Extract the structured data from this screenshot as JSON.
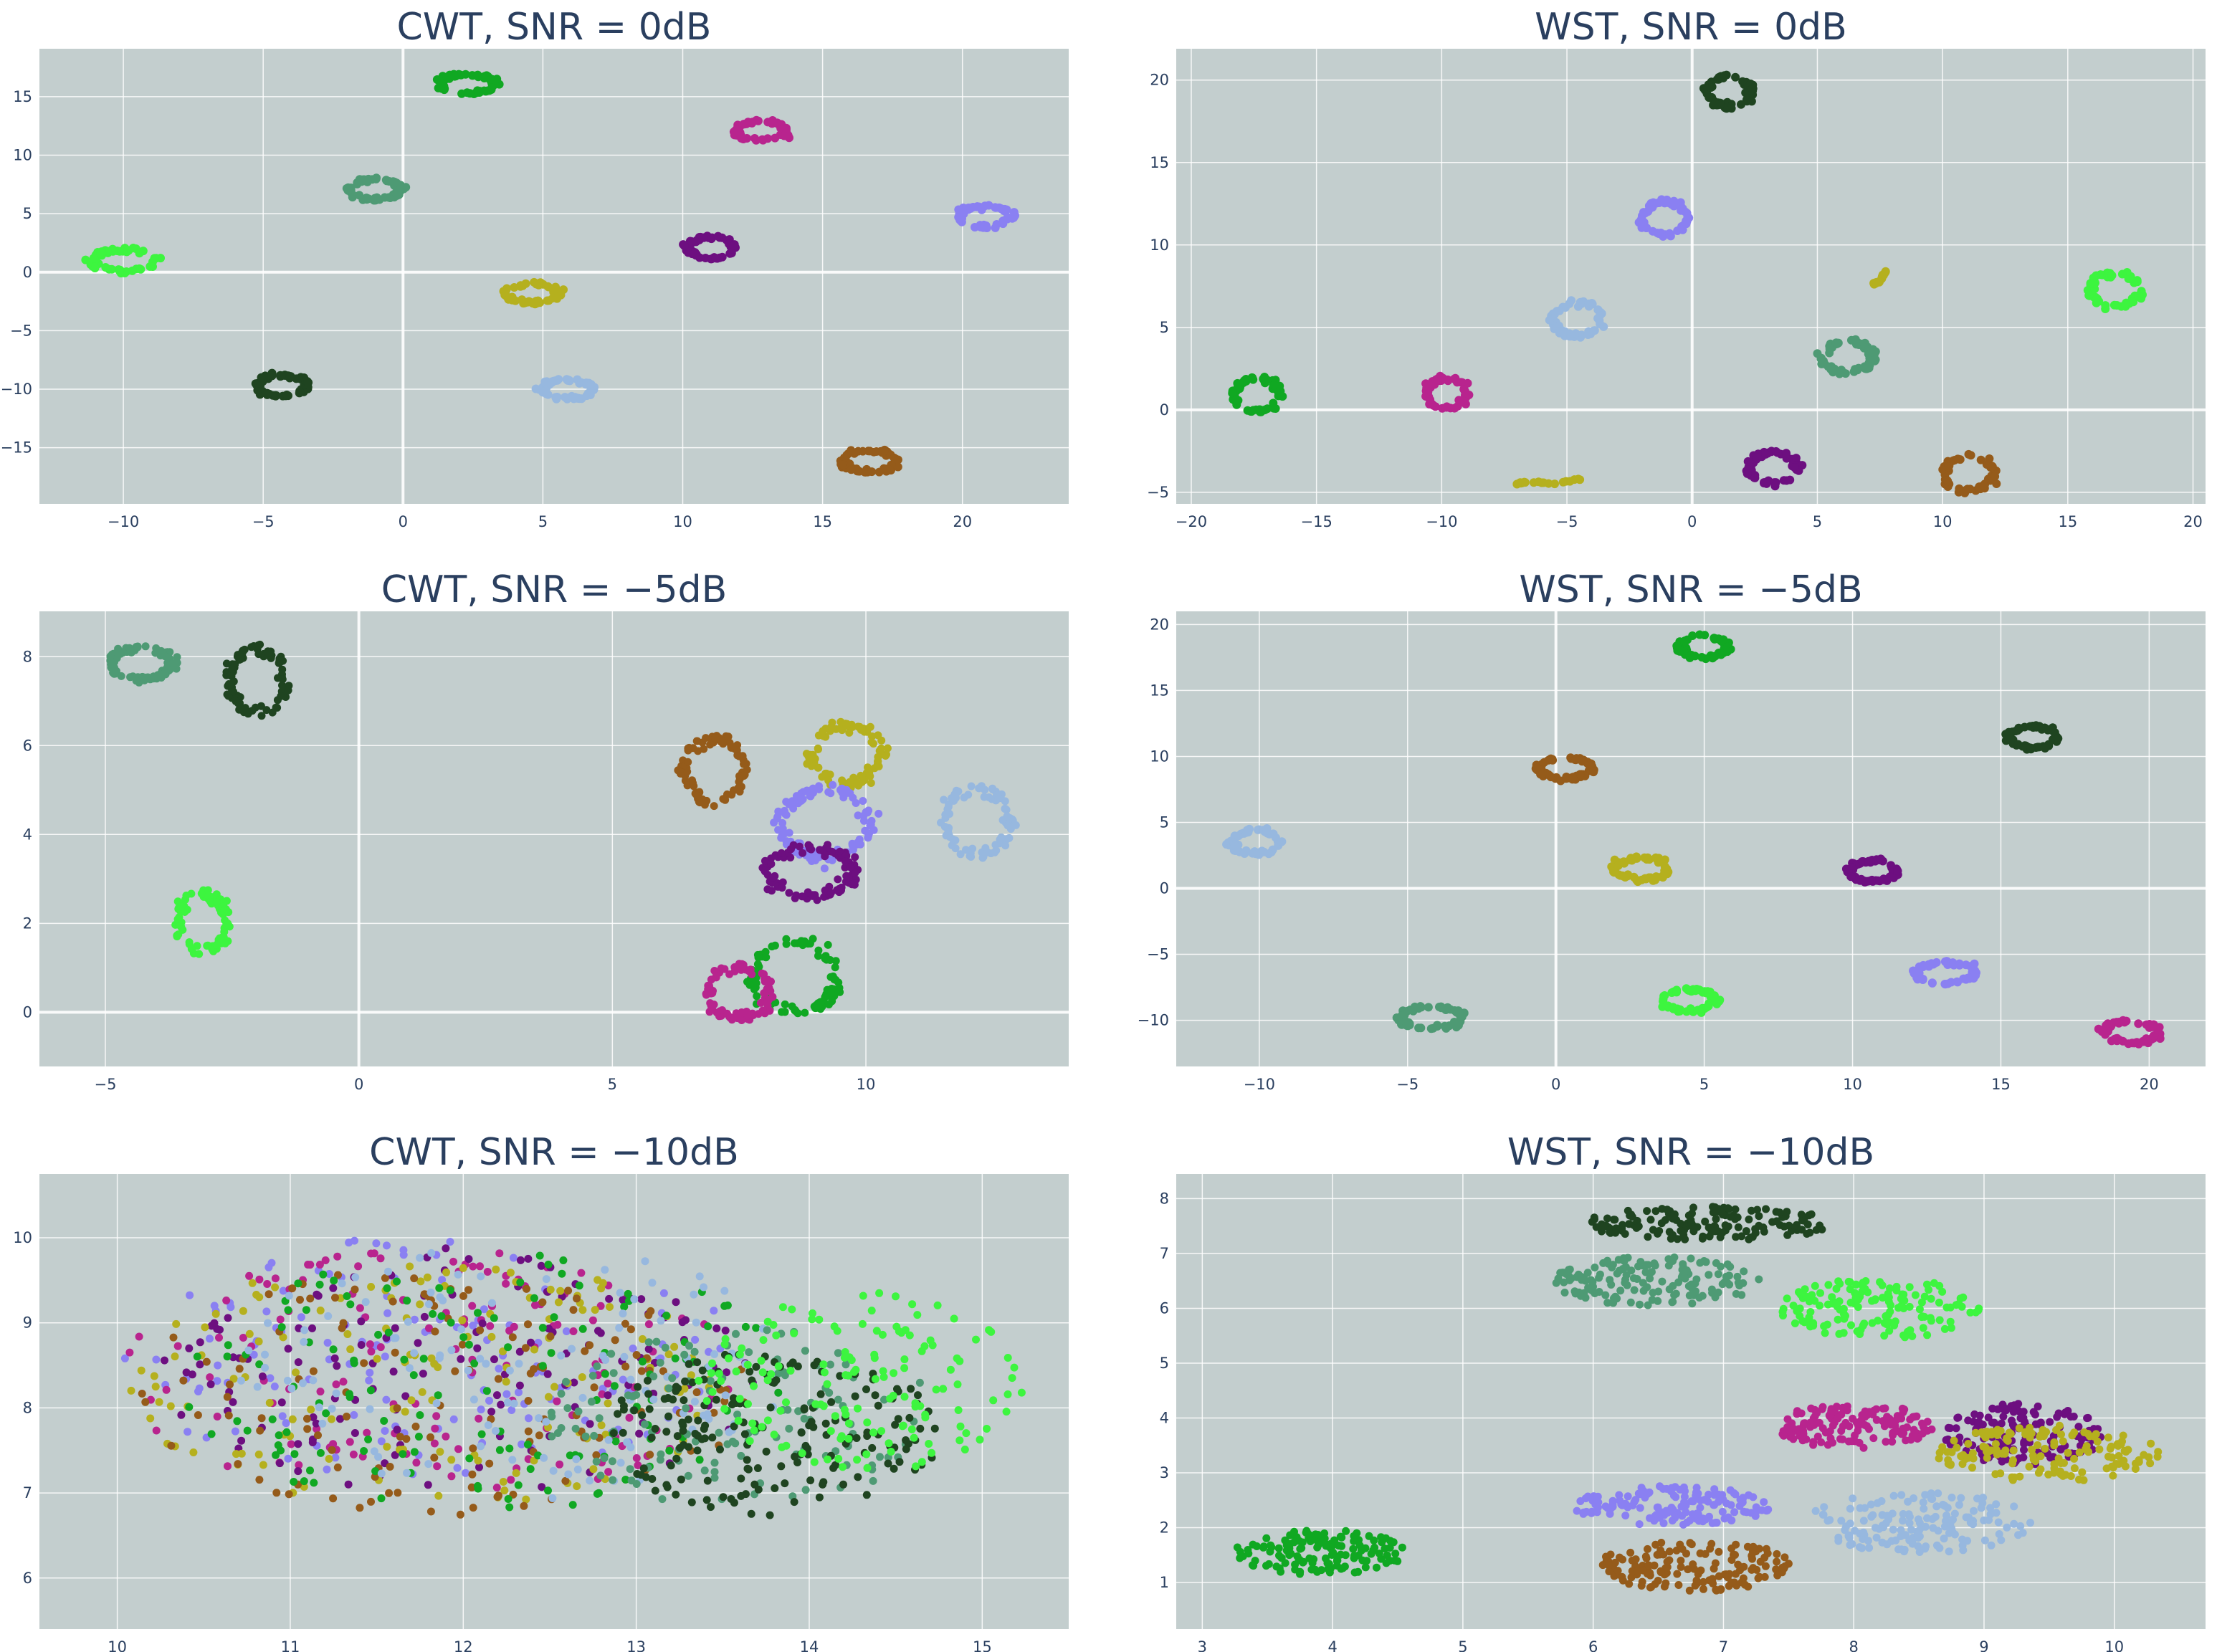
{
  "chart_data": [
    {
      "type": "scatter",
      "title": "CWT, SNR = 0dB",
      "xlabel": "",
      "ylabel": "",
      "xlim": [
        -13.0,
        23.8
      ],
      "ylim": [
        -19.8,
        19.1
      ],
      "xticks": [
        -10,
        -5,
        0,
        5,
        10,
        15,
        20
      ],
      "yticks": [
        -15,
        -10,
        -5,
        0,
        5,
        10,
        15
      ],
      "grid": true,
      "legend": "none",
      "clusters": [
        {
          "color": "#10a822",
          "center": [
            2.3,
            16.1
          ],
          "rx": 1.0,
          "ry": 0.8,
          "shape": "ring",
          "n": 60
        },
        {
          "color": "#b8248e",
          "center": [
            12.8,
            12.1
          ],
          "rx": 0.9,
          "ry": 0.8,
          "shape": "ring",
          "n": 60
        },
        {
          "color": "#4e9a74",
          "center": [
            -1.0,
            7.1
          ],
          "rx": 0.9,
          "ry": 0.9,
          "shape": "ring",
          "n": 60
        },
        {
          "color": "#8a80f2",
          "center": [
            20.8,
            4.8
          ],
          "rx": 0.9,
          "ry": 0.9,
          "shape": "ring",
          "n": 60
        },
        {
          "color": "#3df53f",
          "center": [
            -10.0,
            1.0
          ],
          "rx": 1.1,
          "ry": 0.9,
          "shape": "ring",
          "n": 60
        },
        {
          "color": "#6d0f80",
          "center": [
            11.0,
            2.1
          ],
          "rx": 0.8,
          "ry": 0.9,
          "shape": "ring",
          "n": 60
        },
        {
          "color": "#b5b01e",
          "center": [
            4.6,
            -1.8
          ],
          "rx": 1.0,
          "ry": 0.8,
          "shape": "ring",
          "n": 60
        },
        {
          "color": "#1f4420",
          "center": [
            -4.3,
            -9.7
          ],
          "rx": 0.9,
          "ry": 0.9,
          "shape": "ring",
          "n": 60
        },
        {
          "color": "#97b8df",
          "center": [
            5.9,
            -10.0
          ],
          "rx": 0.9,
          "ry": 0.8,
          "shape": "ring",
          "n": 60
        },
        {
          "color": "#955b1a",
          "center": [
            16.7,
            -16.2
          ],
          "rx": 1.0,
          "ry": 0.9,
          "shape": "ring",
          "n": 60
        }
      ]
    },
    {
      "type": "scatter",
      "title": "WST, SNR = 0dB",
      "xlabel": "",
      "ylabel": "",
      "xlim": [
        -20.6,
        20.5
      ],
      "ylim": [
        -5.7,
        21.9
      ],
      "xticks": [
        -20,
        -15,
        -10,
        -5,
        0,
        5,
        10,
        15,
        20
      ],
      "yticks": [
        -5,
        0,
        5,
        10,
        15,
        20
      ],
      "grid": true,
      "legend": "none",
      "clusters": [
        {
          "color": "#1f4420",
          "center": [
            1.5,
            19.3
          ],
          "rx": 0.9,
          "ry": 0.9,
          "shape": "ring",
          "n": 60
        },
        {
          "color": "#8a80f2",
          "center": [
            -1.1,
            11.6
          ],
          "rx": 0.9,
          "ry": 1.0,
          "shape": "ring",
          "n": 60
        },
        {
          "color": "#b5b01e",
          "center": [
            7.5,
            7.8
          ],
          "rx": 0.3,
          "ry": 0.8,
          "shape": "arc",
          "n": 18
        },
        {
          "color": "#3df53f",
          "center": [
            16.9,
            7.3
          ],
          "rx": 1.0,
          "ry": 1.0,
          "shape": "ring",
          "n": 60
        },
        {
          "color": "#97b8df",
          "center": [
            -4.6,
            5.5
          ],
          "rx": 1.0,
          "ry": 1.0,
          "shape": "ring",
          "n": 60
        },
        {
          "color": "#4e9a74",
          "center": [
            6.2,
            3.2
          ],
          "rx": 1.0,
          "ry": 0.9,
          "shape": "ring",
          "n": 60
        },
        {
          "color": "#10a822",
          "center": [
            -17.4,
            0.9
          ],
          "rx": 0.9,
          "ry": 1.0,
          "shape": "ring",
          "n": 60
        },
        {
          "color": "#b8248e",
          "center": [
            -9.8,
            1.0
          ],
          "rx": 0.8,
          "ry": 0.9,
          "shape": "ring",
          "n": 60
        },
        {
          "color": "#6d0f80",
          "center": [
            3.2,
            -3.5
          ],
          "rx": 1.0,
          "ry": 0.9,
          "shape": "ring",
          "n": 60
        },
        {
          "color": "#955b1a",
          "center": [
            11.0,
            -3.9
          ],
          "rx": 1.0,
          "ry": 1.0,
          "shape": "ring",
          "n": 60
        },
        {
          "color": "#b5b01e",
          "center": [
            -5.5,
            -4.4
          ],
          "rx": 1.5,
          "ry": 0.2,
          "shape": "arc",
          "n": 20
        }
      ]
    },
    {
      "type": "scatter",
      "title": "CWT, SNR = −5dB",
      "xlabel": "",
      "ylabel": "",
      "xlim": [
        -6.3,
        14.0
      ],
      "ylim": [
        -1.22,
        9.02
      ],
      "xticks": [
        -5,
        0,
        5,
        10
      ],
      "yticks": [
        0,
        2,
        4,
        6,
        8
      ],
      "grid": true,
      "legend": "none",
      "clusters": [
        {
          "color": "#4e9a74",
          "center": [
            -4.3,
            7.85
          ],
          "rx": 0.6,
          "ry": 0.35,
          "shape": "ring",
          "n": 90
        },
        {
          "color": "#1f4420",
          "center": [
            -2.0,
            7.45
          ],
          "rx": 0.55,
          "ry": 0.7,
          "shape": "ring",
          "n": 90
        },
        {
          "color": "#955b1a",
          "center": [
            7.0,
            5.45
          ],
          "rx": 0.6,
          "ry": 0.7,
          "shape": "ring",
          "n": 90
        },
        {
          "color": "#b5b01e",
          "center": [
            9.6,
            5.8
          ],
          "rx": 0.7,
          "ry": 0.65,
          "shape": "ring",
          "n": 90
        },
        {
          "color": "#8a80f2",
          "center": [
            9.2,
            4.25
          ],
          "rx": 0.9,
          "ry": 0.75,
          "shape": "ring",
          "n": 110
        },
        {
          "color": "#97b8df",
          "center": [
            12.2,
            4.3
          ],
          "rx": 0.65,
          "ry": 0.75,
          "shape": "ring",
          "n": 90
        },
        {
          "color": "#6d0f80",
          "center": [
            8.9,
            3.15
          ],
          "rx": 0.85,
          "ry": 0.55,
          "shape": "ring",
          "n": 100
        },
        {
          "color": "#3df53f",
          "center": [
            -3.1,
            2.0
          ],
          "rx": 0.5,
          "ry": 0.65,
          "shape": "ring",
          "n": 90
        },
        {
          "color": "#10a822",
          "center": [
            8.6,
            0.8
          ],
          "rx": 0.8,
          "ry": 0.8,
          "shape": "ring",
          "n": 100
        },
        {
          "color": "#b8248e",
          "center": [
            7.5,
            0.45
          ],
          "rx": 0.6,
          "ry": 0.6,
          "shape": "ring",
          "n": 90
        }
      ]
    },
    {
      "type": "scatter",
      "title": "WST, SNR = −5dB",
      "xlabel": "",
      "ylabel": "",
      "xlim": [
        -12.8,
        21.9
      ],
      "ylim": [
        -13.5,
        21.0
      ],
      "xticks": [
        -10,
        -5,
        0,
        5,
        10,
        15,
        20
      ],
      "yticks": [
        -10,
        -5,
        0,
        5,
        10,
        15,
        20
      ],
      "grid": true,
      "legend": "none",
      "clusters": [
        {
          "color": "#10a822",
          "center": [
            5.0,
            18.3
          ],
          "rx": 0.8,
          "ry": 0.8,
          "shape": "ring",
          "n": 60
        },
        {
          "color": "#1f4420",
          "center": [
            16.1,
            11.5
          ],
          "rx": 0.8,
          "ry": 0.8,
          "shape": "ring",
          "n": 60
        },
        {
          "color": "#955b1a",
          "center": [
            0.3,
            9.1
          ],
          "rx": 0.9,
          "ry": 0.8,
          "shape": "ring",
          "n": 60
        },
        {
          "color": "#97b8df",
          "center": [
            -10.1,
            3.5
          ],
          "rx": 0.8,
          "ry": 0.9,
          "shape": "ring",
          "n": 60
        },
        {
          "color": "#b5b01e",
          "center": [
            2.9,
            1.5
          ],
          "rx": 0.9,
          "ry": 0.8,
          "shape": "ring",
          "n": 60
        },
        {
          "color": "#6d0f80",
          "center": [
            10.7,
            1.3
          ],
          "rx": 0.8,
          "ry": 0.8,
          "shape": "ring",
          "n": 60
        },
        {
          "color": "#8a80f2",
          "center": [
            13.1,
            -6.4
          ],
          "rx": 1.0,
          "ry": 0.8,
          "shape": "ring",
          "n": 60
        },
        {
          "color": "#3df53f",
          "center": [
            4.5,
            -8.5
          ],
          "rx": 0.9,
          "ry": 0.8,
          "shape": "ring",
          "n": 60
        },
        {
          "color": "#4e9a74",
          "center": [
            -4.2,
            -9.8
          ],
          "rx": 1.0,
          "ry": 0.8,
          "shape": "ring",
          "n": 60
        },
        {
          "color": "#b8248e",
          "center": [
            19.4,
            -10.9
          ],
          "rx": 0.9,
          "ry": 0.8,
          "shape": "ring",
          "n": 60
        }
      ]
    },
    {
      "type": "scatter",
      "title": "CWT, SNR = −10dB",
      "xlabel": "",
      "ylabel": "",
      "xlim": [
        9.55,
        15.5
      ],
      "ylim": [
        5.4,
        10.75
      ],
      "xticks": [
        10,
        11,
        12,
        13,
        14,
        15
      ],
      "yticks": [
        6,
        7,
        8,
        9,
        10
      ],
      "grid": true,
      "legend": "none",
      "clusters": [
        {
          "color": "#8a80f2",
          "center": [
            11.8,
            8.6
          ],
          "rx": 1.75,
          "ry": 1.4,
          "shape": "blob",
          "n": 140
        },
        {
          "color": "#b8248e",
          "center": [
            11.8,
            8.4
          ],
          "rx": 1.75,
          "ry": 1.45,
          "shape": "blob",
          "n": 140
        },
        {
          "color": "#6d0f80",
          "center": [
            12.0,
            8.4
          ],
          "rx": 1.75,
          "ry": 1.45,
          "shape": "blob",
          "n": 140
        },
        {
          "color": "#b5b01e",
          "center": [
            11.8,
            8.3
          ],
          "rx": 1.7,
          "ry": 1.45,
          "shape": "blob",
          "n": 140
        },
        {
          "color": "#955b1a",
          "center": [
            11.9,
            8.2
          ],
          "rx": 1.75,
          "ry": 1.45,
          "shape": "blob",
          "n": 140
        },
        {
          "color": "#10a822",
          "center": [
            12.1,
            8.3
          ],
          "rx": 1.8,
          "ry": 1.5,
          "shape": "blob",
          "n": 140
        },
        {
          "color": "#97b8df",
          "center": [
            12.3,
            8.4
          ],
          "rx": 1.7,
          "ry": 1.45,
          "shape": "blob",
          "n": 120
        },
        {
          "color": "#4e9a74",
          "center": [
            13.6,
            7.9
          ],
          "rx": 1.1,
          "ry": 1.05,
          "shape": "blob",
          "n": 130
        },
        {
          "color": "#1f4420",
          "center": [
            13.8,
            7.7
          ],
          "rx": 0.95,
          "ry": 0.95,
          "shape": "blob",
          "n": 190
        },
        {
          "color": "#3df53f",
          "center": [
            14.3,
            8.3
          ],
          "rx": 0.95,
          "ry": 1.05,
          "shape": "blob",
          "n": 150
        }
      ]
    },
    {
      "type": "scatter",
      "title": "WST, SNR = −10dB",
      "xlabel": "",
      "ylabel": "",
      "xlim": [
        2.8,
        10.7
      ],
      "ylim": [
        0.15,
        8.45
      ],
      "xticks": [
        3,
        4,
        5,
        6,
        7,
        8,
        9,
        10
      ],
      "yticks": [
        1,
        2,
        3,
        4,
        5,
        6,
        7,
        8
      ],
      "grid": true,
      "legend": "none",
      "clusters": [
        {
          "color": "#1f4420",
          "center": [
            6.9,
            7.55
          ],
          "rx": 0.95,
          "ry": 0.3,
          "shape": "blob",
          "n": 150
        },
        {
          "color": "#4e9a74",
          "center": [
            6.5,
            6.5
          ],
          "rx": 0.8,
          "ry": 0.45,
          "shape": "blob",
          "n": 150
        },
        {
          "color": "#3df53f",
          "center": [
            8.2,
            6.0
          ],
          "rx": 0.75,
          "ry": 0.55,
          "shape": "blob",
          "n": 150
        },
        {
          "color": "#b8248e",
          "center": [
            8.0,
            3.85
          ],
          "rx": 0.6,
          "ry": 0.4,
          "shape": "blob",
          "n": 150
        },
        {
          "color": "#6d0f80",
          "center": [
            9.3,
            3.7
          ],
          "rx": 0.6,
          "ry": 0.55,
          "shape": "blob",
          "n": 150
        },
        {
          "color": "#b5b01e",
          "center": [
            9.5,
            3.35
          ],
          "rx": 0.85,
          "ry": 0.5,
          "shape": "blob",
          "n": 150
        },
        {
          "color": "#8a80f2",
          "center": [
            6.6,
            2.4
          ],
          "rx": 0.75,
          "ry": 0.35,
          "shape": "blob",
          "n": 150
        },
        {
          "color": "#97b8df",
          "center": [
            8.5,
            2.1
          ],
          "rx": 0.85,
          "ry": 0.55,
          "shape": "blob",
          "n": 150
        },
        {
          "color": "#955b1a",
          "center": [
            6.8,
            1.3
          ],
          "rx": 0.75,
          "ry": 0.45,
          "shape": "blob",
          "n": 150
        },
        {
          "color": "#10a822",
          "center": [
            3.9,
            1.55
          ],
          "rx": 0.65,
          "ry": 0.4,
          "shape": "blob",
          "n": 150
        }
      ]
    }
  ]
}
